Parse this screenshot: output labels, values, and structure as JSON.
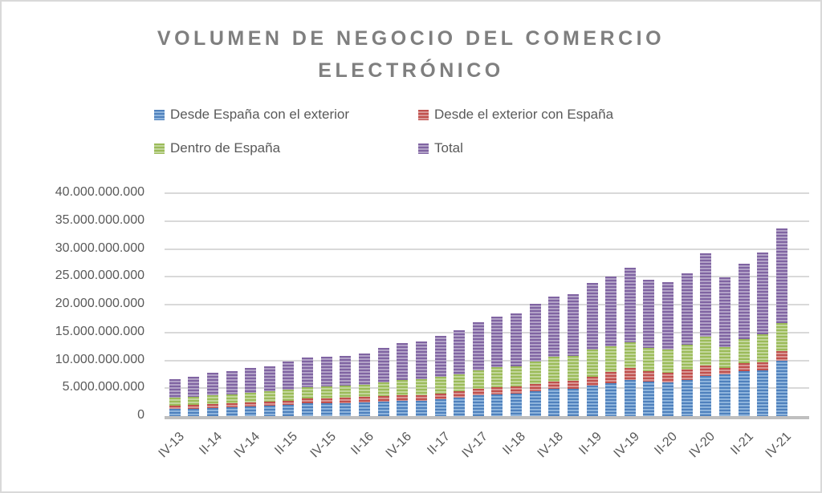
{
  "title": {
    "lines": [
      "VOLUMEN DE NEGOCIO DEL COMERCIO",
      "ELECTRÓNICO"
    ]
  },
  "colors": {
    "title_text": "#7f7f7f",
    "axis_text": "#595959",
    "gridline": "#d9d9d9",
    "axis_line": "#bfbfbf",
    "background": "#ffffff"
  },
  "chart_data": {
    "type": "bar",
    "subtype": "stacked-striped-columns",
    "title": "VOLUMEN DE NEGOCIO DEL COMERCIO ELECTRÓNICO",
    "xlabel": "",
    "ylabel": "",
    "ylim": [
      0,
      40000000000
    ],
    "ytick_step": 5000000000,
    "ytick_labels": [
      "0",
      "5.000.000.000",
      "10.000.000.000",
      "15.000.000.000",
      "20.000.000.000",
      "25.000.000.000",
      "30.000.000.000",
      "35.000.000.000",
      "40.000.000.000"
    ],
    "grid": true,
    "legend_position": "top",
    "categories": [
      "IV-13",
      "I-14",
      "II-14",
      "III-14",
      "IV-14",
      "I-15",
      "II-15",
      "III-15",
      "IV-15",
      "I-16",
      "II-16",
      "III-16",
      "IV-16",
      "I-17",
      "II-17",
      "III-17",
      "IV-17",
      "I-18",
      "II-18",
      "III-18",
      "IV-18",
      "I-19",
      "II-19",
      "III-19",
      "IV-19",
      "I-20",
      "II-20",
      "III-20",
      "IV-20",
      "I-21",
      "II-21",
      "III-21",
      "IV-21"
    ],
    "visible_tick_labels": [
      "IV-13",
      "II-14",
      "IV-14",
      "II-15",
      "IV-15",
      "II-16",
      "IV-16",
      "II-17",
      "IV-17",
      "II-18",
      "IV-18",
      "II-19",
      "IV-19",
      "II-20",
      "IV-20",
      "II-21",
      "IV-21"
    ],
    "note_values_estimated_from_pixels": true,
    "series": [
      {
        "name": "Desde España con el exterior",
        "color": "#4f81bd",
        "color_light": "#8eb4dc",
        "values": [
          1250000000,
          1350000000,
          1500000000,
          1600000000,
          1750000000,
          1800000000,
          2000000000,
          2250000000,
          2300000000,
          2350000000,
          2450000000,
          2600000000,
          2800000000,
          2800000000,
          3050000000,
          3350000000,
          3700000000,
          3950000000,
          4050000000,
          4450000000,
          4850000000,
          4900000000,
          5450000000,
          5900000000,
          6500000000,
          6200000000,
          6100000000,
          6500000000,
          7200000000,
          7500000000,
          8000000000,
          8200000000,
          9900000000
        ]
      },
      {
        "name": "Desde el exterior con España",
        "color": "#c0504d",
        "color_light": "#d99694",
        "values": [
          550000000,
          600000000,
          650000000,
          650000000,
          700000000,
          750000000,
          800000000,
          850000000,
          900000000,
          900000000,
          950000000,
          950000000,
          950000000,
          1000000000,
          1000000000,
          1100000000,
          1150000000,
          1250000000,
          1250000000,
          1350000000,
          1400000000,
          1450000000,
          1600000000,
          2000000000,
          2150000000,
          1800000000,
          1700000000,
          1800000000,
          1800000000,
          1150000000,
          1450000000,
          1450000000,
          1750000000
        ]
      },
      {
        "name": "Dentro de España",
        "color": "#9bbb59",
        "color_light": "#c2d69b",
        "values": [
          1450000000,
          1500000000,
          1600000000,
          1700000000,
          1750000000,
          1850000000,
          2000000000,
          2100000000,
          2100000000,
          2150000000,
          2200000000,
          2550000000,
          2750000000,
          2750000000,
          2950000000,
          3100000000,
          3400000000,
          3550000000,
          3650000000,
          3950000000,
          4400000000,
          4450000000,
          4850000000,
          4600000000,
          4550000000,
          4200000000,
          4200000000,
          4500000000,
          5300000000,
          3700000000,
          4300000000,
          5000000000,
          5100000000
        ]
      },
      {
        "name": "Total",
        "color": "#8064a2",
        "color_light": "#b2a2c7",
        "values": [
          3400000000,
          3550000000,
          3950000000,
          4150000000,
          4400000000,
          4550000000,
          5000000000,
          5350000000,
          5400000000,
          5450000000,
          5650000000,
          6150000000,
          6650000000,
          6800000000,
          7450000000,
          7800000000,
          8650000000,
          9100000000,
          9400000000,
          10450000000,
          10800000000,
          11100000000,
          12050000000,
          12550000000,
          13400000000,
          12200000000,
          12000000000,
          12850000000,
          14900000000,
          12600000000,
          13600000000,
          14700000000,
          16950000000
        ]
      }
    ]
  }
}
